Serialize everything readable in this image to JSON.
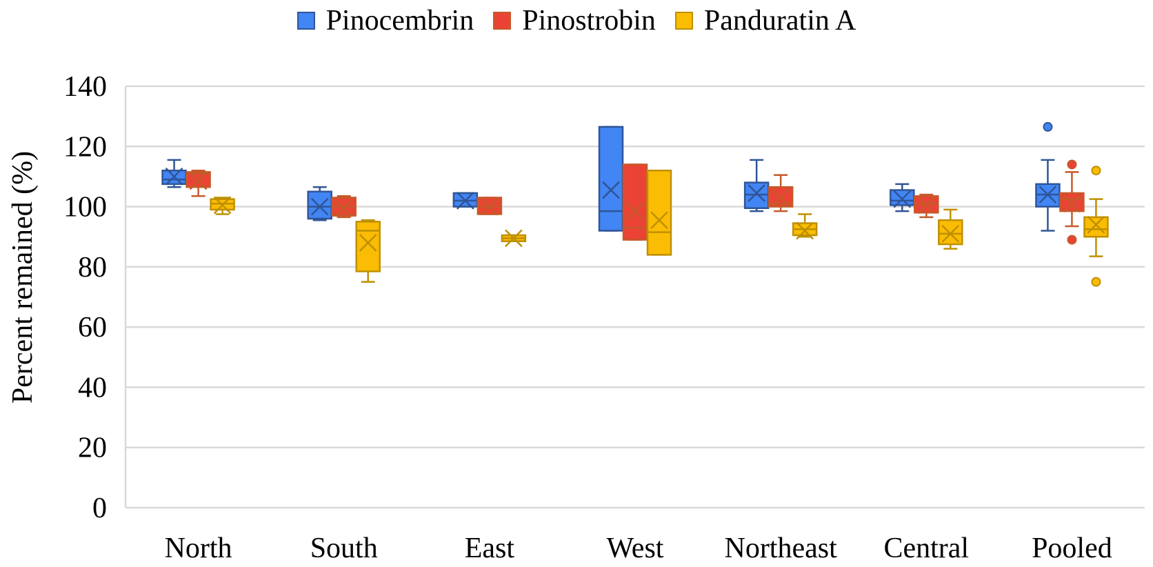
{
  "chart_data": {
    "type": "boxplot",
    "title": "",
    "xlabel": "",
    "ylabel": "Percent remained (%)",
    "ylim": [
      0,
      140
    ],
    "yticks": [
      0,
      20,
      40,
      60,
      80,
      100,
      120,
      140
    ],
    "grid": true,
    "legend_position": "top-center",
    "categories": [
      "North",
      "South",
      "East",
      "West",
      "Northeast",
      "Central",
      "Pooled"
    ],
    "series": [
      {
        "name": "Pinocembrin",
        "color": "#4285F4",
        "edge": "#2F5597",
        "boxes": [
          {
            "min": 106.5,
            "q1": 107.5,
            "median": 109,
            "q3": 112,
            "max": 115.5,
            "mean": 110,
            "outliers": []
          },
          {
            "min": 95.5,
            "q1": 96,
            "median": 100,
            "q3": 105,
            "max": 106.5,
            "mean": 100,
            "outliers": []
          },
          {
            "min": 100,
            "q1": 100,
            "median": 102,
            "q3": 104.5,
            "max": 104.5,
            "mean": 102,
            "outliers": []
          },
          {
            "min": 92,
            "q1": 92,
            "median": 98.5,
            "q3": 126.5,
            "max": 126.5,
            "mean": 105.5,
            "outliers": []
          },
          {
            "min": 98.5,
            "q1": 99.5,
            "median": 104,
            "q3": 108,
            "max": 115.5,
            "mean": 104.5,
            "outliers": []
          },
          {
            "min": 98.5,
            "q1": 100.5,
            "median": 102,
            "q3": 105.5,
            "max": 107.5,
            "mean": 102.5,
            "outliers": []
          },
          {
            "min": 92,
            "q1": 100,
            "median": 104,
            "q3": 107.5,
            "max": 115.5,
            "mean": 104,
            "outliers": [
              126.5
            ]
          }
        ]
      },
      {
        "name": "Pinostrobin",
        "color": "#EA4335",
        "edge": "#C55A29",
        "boxes": [
          {
            "min": 103.5,
            "q1": 106.5,
            "median": 111,
            "q3": 111.5,
            "max": 112,
            "mean": 108.5,
            "outliers": []
          },
          {
            "min": 96.5,
            "q1": 97,
            "median": 100,
            "q3": 103,
            "max": 103.5,
            "mean": 99.5,
            "outliers": []
          },
          {
            "min": 97.5,
            "q1": 97.5,
            "median": 100,
            "q3": 103,
            "max": 103,
            "mean": 100,
            "outliers": []
          },
          {
            "min": 89,
            "q1": 89,
            "median": 93,
            "q3": 114,
            "max": 114,
            "mean": 98.5,
            "outliers": []
          },
          {
            "min": 98.5,
            "q1": 100,
            "median": 101,
            "q3": 106.5,
            "max": 110.5,
            "mean": 103,
            "outliers": []
          },
          {
            "min": 96.5,
            "q1": 98,
            "median": 101,
            "q3": 103.5,
            "max": 104,
            "mean": 100.5,
            "outliers": []
          },
          {
            "min": 93.5,
            "q1": 98.5,
            "median": 102.5,
            "q3": 104.5,
            "max": 111.5,
            "mean": 101,
            "outliers": [
              114,
              89
            ]
          }
        ]
      },
      {
        "name": "Panduratin A",
        "color": "#FBBC04",
        "edge": "#BF9000",
        "boxes": [
          {
            "min": 97.5,
            "q1": 99,
            "median": 101,
            "q3": 102.5,
            "max": 103,
            "mean": 100.5,
            "outliers": []
          },
          {
            "min": 75,
            "q1": 78.5,
            "median": 92,
            "q3": 95,
            "max": 95.5,
            "mean": 88,
            "outliers": []
          },
          {
            "min": 88.5,
            "q1": 88.5,
            "median": 89.5,
            "q3": 90.5,
            "max": 90.5,
            "mean": 89.5,
            "outliers": []
          },
          {
            "min": 84,
            "q1": 84,
            "median": 91.5,
            "q3": 112,
            "max": 112,
            "mean": 95.5,
            "outliers": []
          },
          {
            "min": 90,
            "q1": 90.5,
            "median": 92.5,
            "q3": 94.5,
            "max": 97.5,
            "mean": 92,
            "outliers": []
          },
          {
            "min": 86,
            "q1": 87.5,
            "median": 91,
            "q3": 95.5,
            "max": 99,
            "mean": 91,
            "outliers": []
          },
          {
            "min": 83.5,
            "q1": 90,
            "median": 92.5,
            "q3": 96.5,
            "max": 102.5,
            "mean": 94,
            "outliers": [
              112,
              75
            ]
          }
        ]
      }
    ]
  }
}
